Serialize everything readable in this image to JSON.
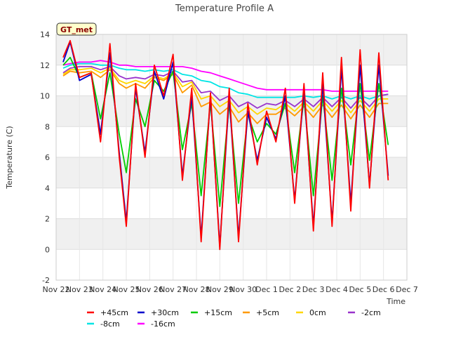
{
  "chart_data": {
    "type": "line",
    "title": "Temperature Profile A",
    "xlabel": "Time",
    "ylabel": "Temperature (C)",
    "tag": "GT_met",
    "ylim": [
      -2,
      14
    ],
    "yticks": [
      -2,
      0,
      2,
      4,
      6,
      8,
      10,
      12,
      14
    ],
    "xlim": [
      0,
      15
    ],
    "xticks": [
      {
        "v": 0,
        "label": "Nov 22"
      },
      {
        "v": 1,
        "label": "Nov 23"
      },
      {
        "v": 2,
        "label": "Nov 24"
      },
      {
        "v": 3,
        "label": "Nov 25"
      },
      {
        "v": 4,
        "label": "Nov 26"
      },
      {
        "v": 5,
        "label": "Nov 27"
      },
      {
        "v": 6,
        "label": "Nov 28"
      },
      {
        "v": 7,
        "label": "Nov 29"
      },
      {
        "v": 8,
        "label": "Nov 30"
      },
      {
        "v": 9,
        "label": "Dec 1"
      },
      {
        "v": 10,
        "label": "Dec 2"
      },
      {
        "v": 11,
        "label": "Dec 3"
      },
      {
        "v": 12,
        "label": "Dec 4"
      },
      {
        "v": 13,
        "label": "Dec 5"
      },
      {
        "v": 14,
        "label": "Dec 6"
      },
      {
        "v": 15,
        "label": "Dec 7"
      }
    ],
    "grid": true,
    "legend_position": "bottom",
    "x": [
      0.3,
      0.6,
      1.0,
      1.5,
      1.9,
      2.3,
      2.7,
      3.0,
      3.4,
      3.8,
      4.2,
      4.6,
      5.0,
      5.4,
      5.8,
      6.2,
      6.6,
      7.0,
      7.4,
      7.8,
      8.2,
      8.6,
      9.0,
      9.4,
      9.8,
      10.2,
      10.6,
      11.0,
      11.4,
      11.8,
      12.2,
      12.6,
      13.0,
      13.4,
      13.8,
      14.2
    ],
    "series": [
      {
        "name": "+45cm",
        "color": "#ff0000",
        "values": [
          12.5,
          13.6,
          11.2,
          11.5,
          7.0,
          13.4,
          6.0,
          1.5,
          10.8,
          6.0,
          12.0,
          10.0,
          12.7,
          4.5,
          10.5,
          0.5,
          10.2,
          0.0,
          10.5,
          0.5,
          9.5,
          5.5,
          9.0,
          7.0,
          10.5,
          3.0,
          10.8,
          1.2,
          11.5,
          1.5,
          12.5,
          2.5,
          13.0,
          4.0,
          12.8,
          4.5
        ]
      },
      {
        "name": "+30cm",
        "color": "#0000cc",
        "values": [
          12.2,
          13.5,
          11.0,
          11.4,
          7.5,
          12.8,
          6.3,
          1.8,
          10.5,
          6.3,
          11.6,
          9.8,
          12.2,
          4.8,
          10.0,
          0.8,
          10.0,
          0.2,
          10.0,
          0.8,
          9.0,
          5.8,
          8.6,
          7.2,
          10.0,
          3.2,
          10.4,
          1.5,
          10.8,
          1.8,
          11.8,
          3.0,
          12.0,
          4.2,
          12.0,
          4.8
        ]
      },
      {
        "name": "+15cm",
        "color": "#00cc00",
        "values": [
          12.0,
          12.5,
          11.2,
          11.5,
          8.5,
          11.5,
          7.5,
          5.0,
          9.8,
          8.0,
          11.0,
          10.3,
          11.6,
          6.5,
          9.5,
          3.5,
          9.5,
          2.8,
          9.5,
          3.0,
          8.8,
          7.0,
          8.2,
          7.5,
          9.5,
          5.0,
          9.8,
          3.5,
          10.0,
          4.5,
          10.5,
          5.5,
          10.8,
          5.8,
          10.8,
          6.8
        ]
      },
      {
        "name": "+5cm",
        "color": "#ff9900",
        "values": [
          11.3,
          11.6,
          11.5,
          11.6,
          11.2,
          11.7,
          10.8,
          10.5,
          10.8,
          10.5,
          11.2,
          11.0,
          11.4,
          10.2,
          10.7,
          9.3,
          9.6,
          8.8,
          9.3,
          8.3,
          8.9,
          8.2,
          8.8,
          8.8,
          9.2,
          8.7,
          9.3,
          8.6,
          9.4,
          8.6,
          9.4,
          8.5,
          9.4,
          8.6,
          9.5,
          9.5
        ]
      },
      {
        "name": "0cm",
        "color": "#ffd700",
        "values": [
          11.4,
          11.7,
          11.7,
          11.8,
          11.5,
          11.8,
          11.0,
          10.8,
          11.0,
          10.8,
          11.3,
          11.1,
          11.5,
          10.6,
          10.9,
          9.8,
          10.0,
          9.3,
          9.7,
          8.9,
          9.3,
          8.8,
          9.2,
          9.1,
          9.5,
          9.0,
          9.6,
          9.0,
          9.7,
          9.0,
          9.7,
          8.9,
          9.7,
          9.0,
          9.8,
          9.8
        ]
      },
      {
        "name": "-2cm",
        "color": "#9933cc",
        "values": [
          11.5,
          11.8,
          11.9,
          11.9,
          11.7,
          11.9,
          11.3,
          11.1,
          11.2,
          11.1,
          11.4,
          11.3,
          11.6,
          10.9,
          11.0,
          10.2,
          10.3,
          9.7,
          10.0,
          9.3,
          9.6,
          9.2,
          9.5,
          9.4,
          9.7,
          9.3,
          9.8,
          9.3,
          9.9,
          9.3,
          9.9,
          9.2,
          9.9,
          9.3,
          10.0,
          10.1
        ]
      },
      {
        "name": "-8cm",
        "color": "#00e5e5",
        "values": [
          11.8,
          12.0,
          12.1,
          12.1,
          12.0,
          12.0,
          11.8,
          11.7,
          11.7,
          11.6,
          11.7,
          11.6,
          11.7,
          11.4,
          11.3,
          11.0,
          10.9,
          10.6,
          10.5,
          10.2,
          10.1,
          9.9,
          9.9,
          9.9,
          9.9,
          9.9,
          10.0,
          9.9,
          10.0,
          9.8,
          10.0,
          9.8,
          10.0,
          9.8,
          10.0,
          10.1
        ]
      },
      {
        "name": "-16cm",
        "color": "#ff00ff",
        "values": [
          12.0,
          12.1,
          12.2,
          12.2,
          12.3,
          12.2,
          12.0,
          12.0,
          11.9,
          11.9,
          11.9,
          11.9,
          11.9,
          11.9,
          11.8,
          11.6,
          11.5,
          11.3,
          11.1,
          10.9,
          10.7,
          10.5,
          10.4,
          10.4,
          10.4,
          10.4,
          10.4,
          10.4,
          10.4,
          10.3,
          10.3,
          10.3,
          10.3,
          10.3,
          10.3,
          10.3
        ]
      }
    ]
  }
}
